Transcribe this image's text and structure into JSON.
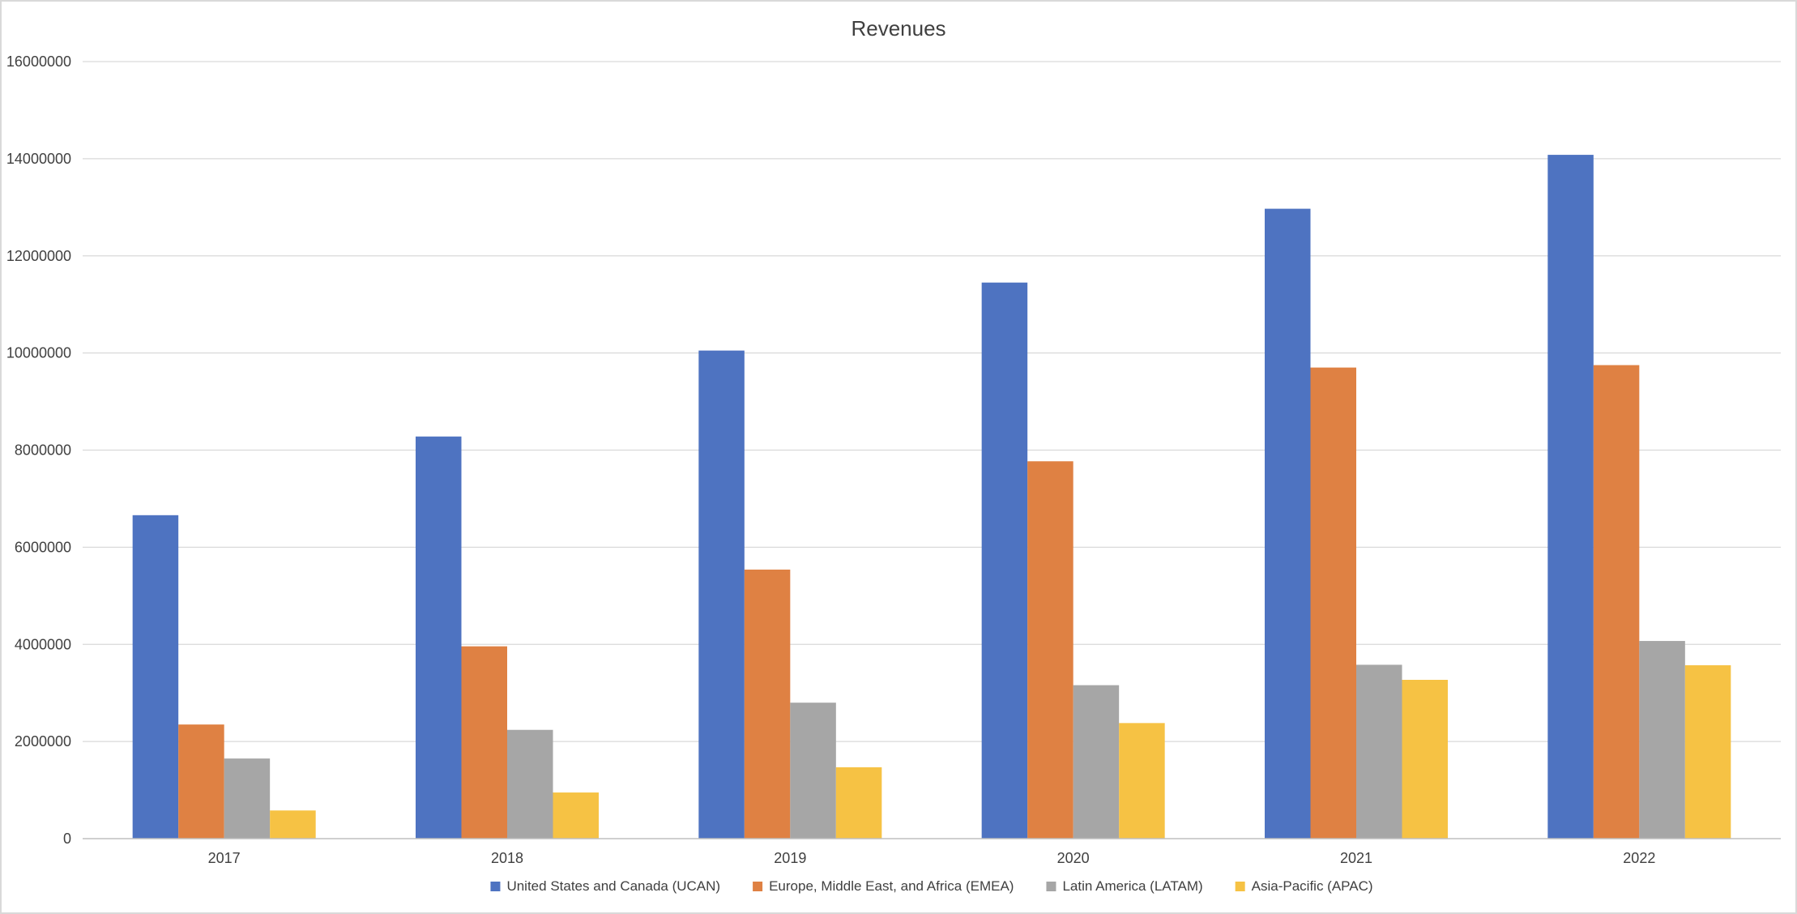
{
  "chart_data": {
    "type": "bar",
    "title": "Revenues",
    "xlabel": "",
    "ylabel": "",
    "categories": [
      "2017",
      "2018",
      "2019",
      "2020",
      "2021",
      "2022"
    ],
    "series": [
      {
        "name": "United States and Canada (UCAN)",
        "color": "#4e73c1",
        "values": [
          6660000,
          8280000,
          10050000,
          11450000,
          12970000,
          14080000
        ]
      },
      {
        "name": "Europe, Middle East, and Africa (EMEA)",
        "color": "#df8143",
        "values": [
          2350000,
          3960000,
          5540000,
          7770000,
          9700000,
          9750000
        ]
      },
      {
        "name": "Latin America (LATAM)",
        "color": "#a6a6a6",
        "values": [
          1650000,
          2240000,
          2800000,
          3160000,
          3580000,
          4070000
        ]
      },
      {
        "name": "Asia-Pacific (APAC)",
        "color": "#f6c244",
        "values": [
          580000,
          950000,
          1470000,
          2380000,
          3270000,
          3570000
        ]
      }
    ],
    "ylim": [
      0,
      16000000
    ],
    "yticks": [
      "0",
      "2000000",
      "4000000",
      "6000000",
      "8000000",
      "10000000",
      "12000000",
      "14000000",
      "16000000"
    ],
    "grid": true,
    "legend_position": "bottom"
  }
}
